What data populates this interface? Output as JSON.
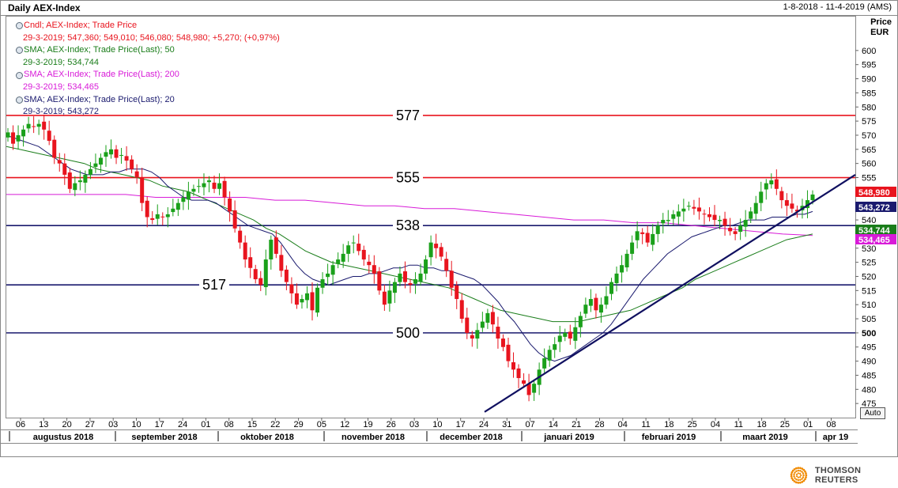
{
  "header": {
    "title": "Daily AEX-Index",
    "date_range": "1-8-2018 - 11-4-2019 (AMS)",
    "price_label": "Price",
    "currency_label": "EUR",
    "auto_label": "Auto"
  },
  "legend": [
    {
      "name": "Cndl; AEX-Index; Trade Price",
      "value": "29-3-2019; 547,360; 549,010; 546,080; 548,980; +5,270; (+0,97%)",
      "color": "#e8141e"
    },
    {
      "name": "SMA; AEX-Index; Trade Price(Last); 50",
      "value": "29-3-2019; 534,744",
      "color": "#1a7d1a"
    },
    {
      "name": "SMA; AEX-Index; Trade Price(Last); 200",
      "value": "29-3-2019; 534,465",
      "color": "#d81bd8"
    },
    {
      "name": "SMA; AEX-Index; Trade Price(Last); 20",
      "value": "29-3-2019; 543,272",
      "color": "#1a1a6e"
    }
  ],
  "logo_text": "THOMSON REUTERS",
  "chart_data": {
    "type": "line",
    "title": "Daily AEX-Index",
    "ylabel": "Price EUR",
    "ylim": [
      470,
      612
    ],
    "y_ticks": [
      475,
      480,
      485,
      490,
      495,
      500,
      505,
      510,
      515,
      520,
      525,
      530,
      535,
      540,
      545,
      550,
      555,
      560,
      565,
      570,
      575,
      580,
      585,
      590,
      595,
      600
    ],
    "x_ticks": [
      "06",
      "13",
      "20",
      "27",
      "03",
      "10",
      "17",
      "24",
      "01",
      "08",
      "15",
      "22",
      "29",
      "05",
      "12",
      "19",
      "26",
      "03",
      "10",
      "17",
      "24",
      "31",
      "07",
      "14",
      "21",
      "28",
      "04",
      "11",
      "18",
      "25",
      "04",
      "11",
      "18",
      "25",
      "01",
      "08"
    ],
    "months": [
      "augustus 2018",
      "september 2018",
      "oktober 2018",
      "november 2018",
      "december 2018",
      "januari 2019",
      "februari 2019",
      "maart 2019",
      "apr 19"
    ],
    "grid": false,
    "horizontal_levels": [
      {
        "value": 577,
        "label": "577",
        "color": "#e8141e"
      },
      {
        "value": 555,
        "label": "555",
        "color": "#e8141e"
      },
      {
        "value": 538,
        "label": "538",
        "color": "#1a1a6e"
      },
      {
        "value": 517,
        "label": "517",
        "color": "#1a1a6e"
      },
      {
        "value": 500,
        "label": "500",
        "color": "#1a1a6e"
      }
    ],
    "trendline": {
      "from": {
        "date": "2018-12-21",
        "price": 472
      },
      "to": {
        "date": "2019-04-11",
        "price": 556
      }
    },
    "last_value_tags": [
      {
        "series": "Cndl",
        "value": "548,980",
        "price": 548.98,
        "color": "#e8141e",
        "text_color": "#ffffff"
      },
      {
        "series": "SMA 20",
        "value": "543,272",
        "price": 543.27,
        "color": "#1a1a6e",
        "text_color": "#ffffff"
      },
      {
        "series": "SMA 50",
        "value": "534,744",
        "price": 534.74,
        "color": "#1a7d1a",
        "text_color": "#ffffff"
      },
      {
        "series": "SMA 200",
        "value": "534,465",
        "price": 534.47,
        "color": "#d81bd8",
        "text_color": "#ffffff"
      }
    ],
    "series": [
      {
        "name": "Cndl; AEX-Index; Trade Price",
        "type": "candlestick",
        "up_color": "#1aa01a",
        "down_color": "#e8141e",
        "close": [
          571,
          567,
          570,
          572,
          574,
          573,
          574,
          572,
          568,
          562,
          560,
          556,
          551,
          553,
          554,
          556,
          558,
          560,
          562,
          564,
          565,
          562,
          563,
          561,
          558,
          555,
          546,
          541,
          540,
          542,
          541,
          542,
          544,
          546,
          548,
          550,
          551,
          552,
          553,
          554,
          551,
          553,
          548,
          543,
          537,
          532,
          526,
          523,
          519,
          517,
          526,
          533,
          528,
          522,
          518,
          514,
          510,
          512,
          514,
          508,
          516,
          519,
          521,
          524,
          526,
          528,
          531,
          532,
          529,
          526,
          524,
          521,
          515,
          510,
          515,
          518,
          521,
          518,
          517,
          519,
          521,
          526,
          532,
          530,
          527,
          522,
          516,
          512,
          505,
          500,
          498,
          501,
          504,
          507,
          503,
          498,
          495,
          490,
          487,
          484,
          482,
          478,
          482,
          487,
          491,
          494,
          496,
          499,
          500,
          498,
          502,
          506,
          510,
          512,
          508,
          510,
          513,
          518,
          521,
          524,
          528,
          532,
          536,
          535,
          532,
          535,
          538,
          540,
          540,
          542,
          543,
          544,
          545,
          544,
          543,
          542,
          541,
          540,
          540,
          538,
          536,
          535,
          538,
          540,
          543,
          546,
          550,
          553,
          554,
          551,
          547,
          545,
          544,
          543,
          545,
          547,
          549
        ],
        "sma20": [
          570,
          569,
          568,
          567,
          566,
          564,
          562,
          560,
          558,
          557,
          556,
          556,
          556,
          557,
          557,
          558,
          558,
          558,
          557,
          555,
          552,
          550,
          548,
          547,
          547,
          547,
          546,
          544,
          542,
          540,
          538,
          537,
          536,
          535,
          532,
          528,
          524,
          521,
          519,
          518,
          517,
          518,
          519,
          520,
          520,
          521,
          521,
          522,
          523,
          523,
          524,
          524,
          523,
          523,
          522,
          522,
          521,
          520,
          519,
          517,
          514,
          511,
          507,
          504,
          500,
          496,
          493,
          491,
          490,
          491,
          492,
          494,
          496,
          498,
          500,
          503,
          507,
          511,
          515,
          519,
          522,
          525,
          528,
          530,
          532,
          534,
          535,
          536,
          537,
          538,
          538,
          539,
          540,
          540,
          540,
          541,
          541,
          541,
          542,
          542,
          543
        ],
        "sma50": [
          566,
          565,
          564,
          563,
          562,
          561,
          560,
          558,
          557,
          556,
          555,
          554,
          552,
          551,
          550,
          548,
          546,
          544,
          542,
          540,
          537,
          535,
          532,
          529,
          527,
          525,
          524,
          523,
          522,
          521,
          520,
          519,
          518,
          517,
          516,
          514,
          512,
          510,
          508,
          507,
          506,
          505,
          504,
          504,
          504,
          505,
          506,
          507,
          508,
          510,
          512,
          514,
          516,
          519,
          521,
          523,
          525,
          527,
          529,
          531,
          533,
          534,
          535
        ],
        "sma200": [
          549,
          549,
          549,
          549,
          549,
          548,
          548,
          548,
          548,
          547,
          547,
          546,
          545,
          545,
          544,
          544,
          543,
          542,
          541,
          540,
          540,
          539,
          539,
          538,
          537,
          536,
          535,
          534.5
        ]
      }
    ]
  }
}
